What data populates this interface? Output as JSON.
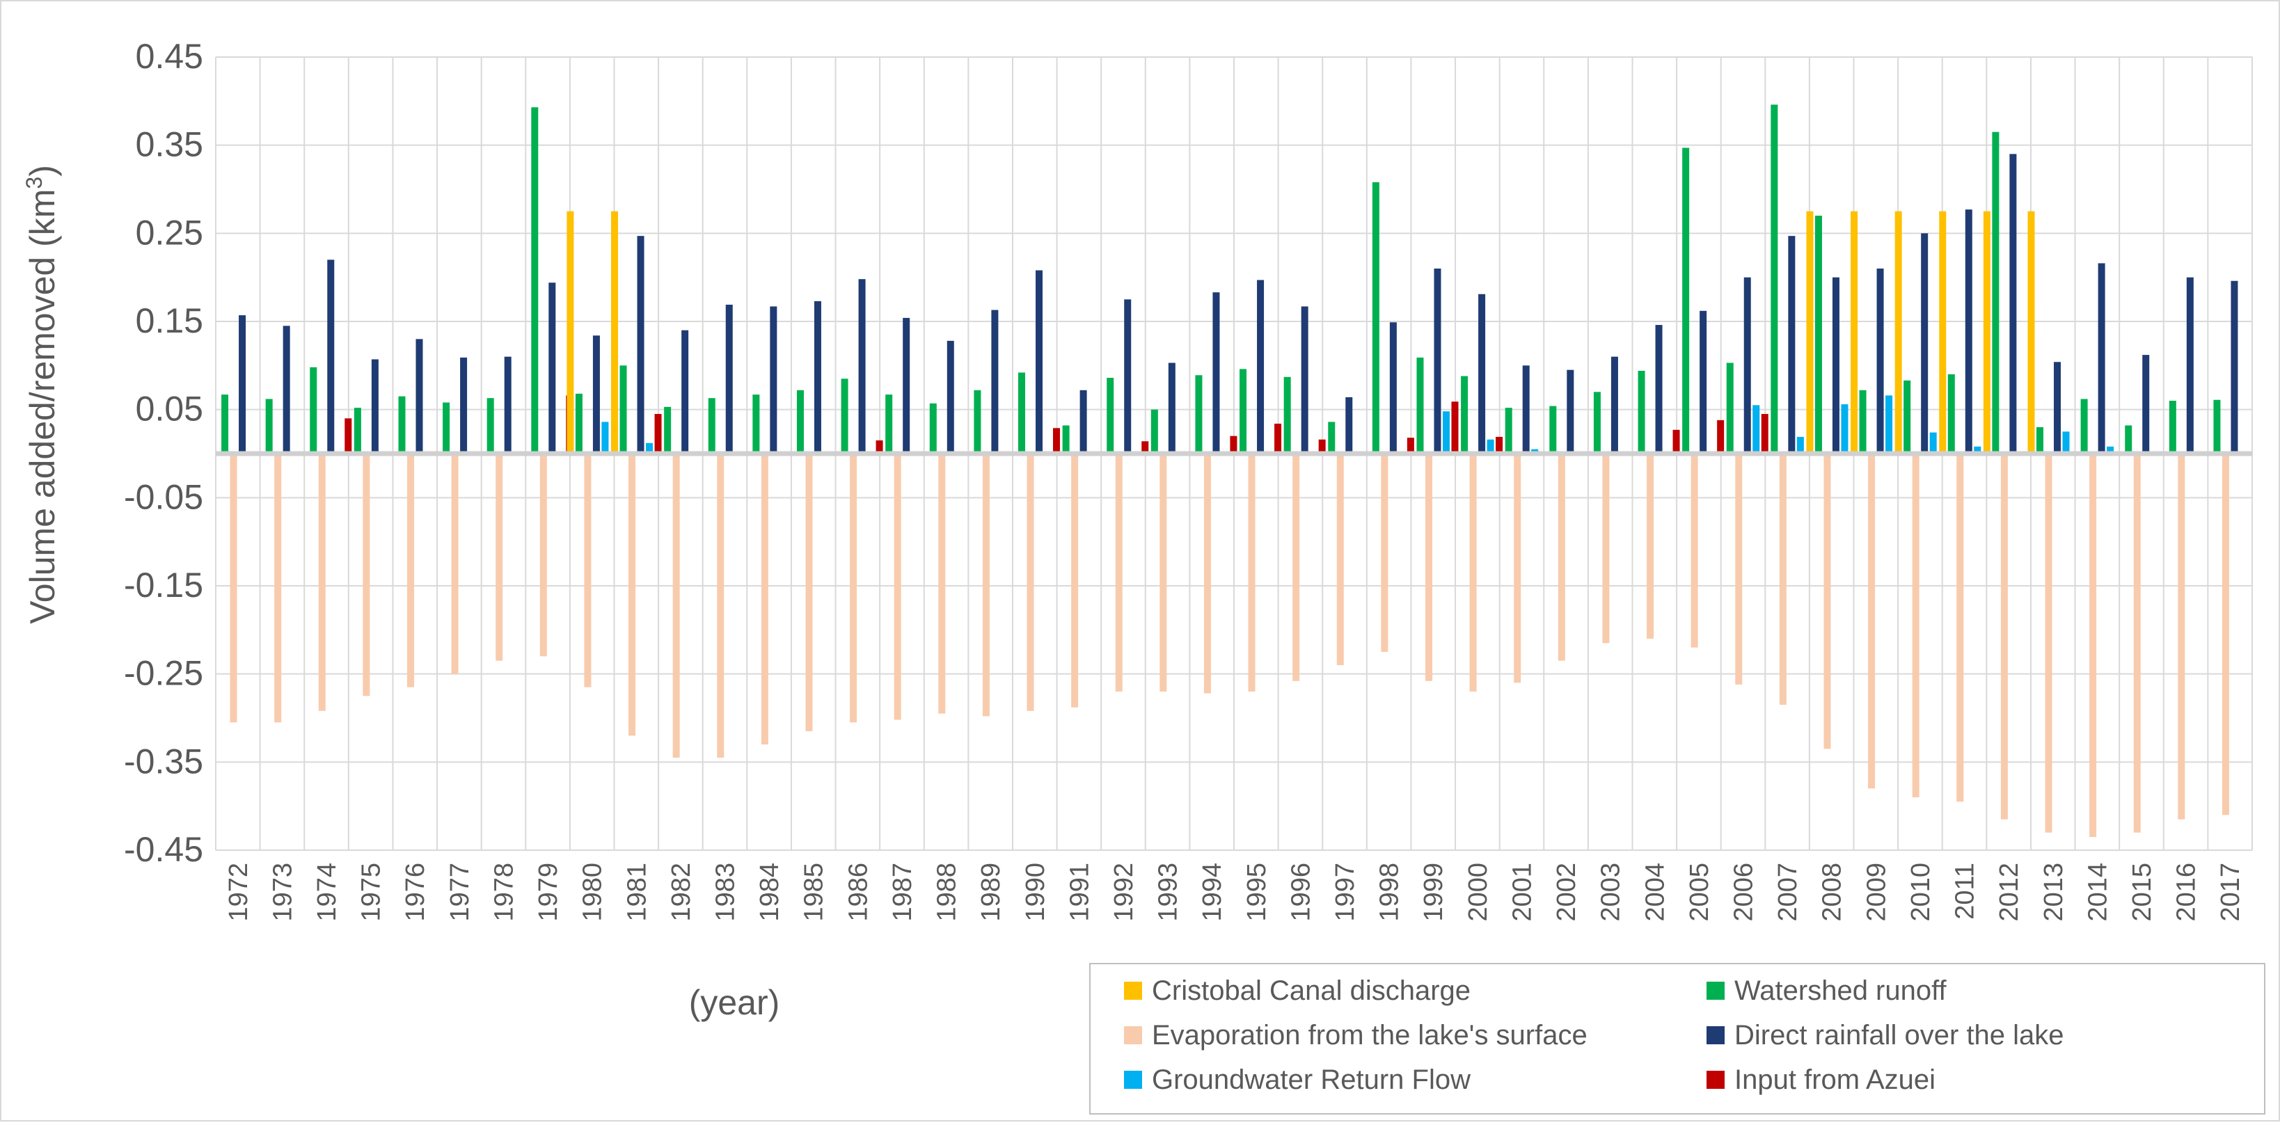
{
  "chart_data": {
    "type": "bar",
    "ylabel": "Volume added/removed (km³)",
    "xlabel": "(year)",
    "ylim": [
      -0.45,
      0.45
    ],
    "yticks": [
      "0.45",
      "0.35",
      "0.25",
      "0.15",
      "0.05",
      "-0.05",
      "-0.15",
      "-0.25",
      "-0.35",
      "-0.45"
    ],
    "grid": true,
    "legend_position": "bottom-right",
    "categories": [
      "1972",
      "1973",
      "1974",
      "1975",
      "1976",
      "1977",
      "1978",
      "1979",
      "1980",
      "1981",
      "1982",
      "1983",
      "1984",
      "1985",
      "1986",
      "1987",
      "1988",
      "1989",
      "1990",
      "1991",
      "1992",
      "1993",
      "1994",
      "1995",
      "1996",
      "1997",
      "1998",
      "1999",
      "2000",
      "2001",
      "2002",
      "2003",
      "2004",
      "2005",
      "2006",
      "2007",
      "2008",
      "2009",
      "2010",
      "2011",
      "2012",
      "2013",
      "2014",
      "2015",
      "2016",
      "2017"
    ],
    "series": [
      {
        "name": "Cristobal Canal discharge",
        "color": "#FFC000",
        "values": [
          0,
          0,
          0,
          0,
          0,
          0,
          0,
          0,
          0.275,
          0.275,
          0,
          0,
          0,
          0,
          0,
          0,
          0,
          0,
          0,
          0,
          0,
          0,
          0,
          0,
          0,
          0,
          0,
          0,
          0,
          0,
          0,
          0,
          0,
          0,
          0,
          0,
          0.275,
          0.275,
          0.275,
          0.275,
          0.275,
          0.275,
          0,
          0,
          0,
          0
        ]
      },
      {
        "name": "Watershed runoff",
        "color": "#00B050",
        "values": [
          0.067,
          0.062,
          0.098,
          0.052,
          0.065,
          0.058,
          0.063,
          0.393,
          0.068,
          0.1,
          0.053,
          0.063,
          0.067,
          0.072,
          0.085,
          0.067,
          0.057,
          0.072,
          0.092,
          0.032,
          0.086,
          0.05,
          0.089,
          0.096,
          0.087,
          0.036,
          0.308,
          0.109,
          0.088,
          0.052,
          0.054,
          0.07,
          0.094,
          0.347,
          0.103,
          0.396,
          0.27,
          0.072,
          0.083,
          0.09,
          0.365,
          0.03,
          0.062,
          0.032,
          0.06,
          0.061
        ]
      },
      {
        "name": "Evaporation from the lake's surface",
        "color": "#F8CBAD",
        "values": [
          -0.305,
          -0.305,
          -0.292,
          -0.275,
          -0.265,
          -0.25,
          -0.235,
          -0.23,
          -0.265,
          -0.32,
          -0.345,
          -0.345,
          -0.33,
          -0.315,
          -0.305,
          -0.302,
          -0.295,
          -0.298,
          -0.292,
          -0.288,
          -0.27,
          -0.27,
          -0.272,
          -0.27,
          -0.258,
          -0.24,
          -0.225,
          -0.258,
          -0.27,
          -0.26,
          -0.235,
          -0.215,
          -0.21,
          -0.22,
          -0.262,
          -0.285,
          -0.335,
          -0.38,
          -0.39,
          -0.395,
          -0.415,
          -0.43,
          -0.435,
          -0.43,
          -0.415,
          -0.41
        ]
      },
      {
        "name": "Direct rainfall over the lake",
        "color": "#1F3B73",
        "values": [
          0.157,
          0.145,
          0.22,
          0.107,
          0.13,
          0.109,
          0.11,
          0.194,
          0.134,
          0.247,
          0.14,
          0.169,
          0.167,
          0.173,
          0.198,
          0.154,
          0.128,
          0.163,
          0.208,
          0.072,
          0.175,
          0.103,
          0.183,
          0.197,
          0.167,
          0.064,
          0.149,
          0.21,
          0.181,
          0.1,
          0.095,
          0.11,
          0.146,
          0.162,
          0.2,
          0.247,
          0.2,
          0.21,
          0.25,
          0.277,
          0.34,
          0.104,
          0.216,
          0.112,
          0.2,
          0.196
        ]
      },
      {
        "name": "Groundwater Return Flow",
        "color": "#00B0F0",
        "values": [
          0,
          0,
          0,
          0,
          0,
          0,
          0,
          0,
          0.036,
          0.012,
          0,
          0,
          0,
          0,
          0,
          0,
          0,
          0,
          0,
          0,
          0,
          0,
          0,
          0,
          0,
          0,
          0,
          0.048,
          0.016,
          0.005,
          0,
          0,
          0,
          0,
          0.055,
          0.019,
          0.056,
          0.066,
          0.024,
          0.008,
          0,
          0.025,
          0.008,
          0,
          0,
          0
        ]
      },
      {
        "name": "Input from Azuei",
        "color": "#C00000",
        "values": [
          0,
          0,
          0.04,
          0,
          0,
          0,
          0,
          0.066,
          0,
          0.045,
          0,
          0,
          0,
          0,
          0.015,
          0,
          0,
          0,
          0.029,
          0,
          0.014,
          0,
          0.02,
          0.034,
          0.016,
          0,
          0.018,
          0.059,
          0.019,
          0,
          0,
          0,
          0.027,
          0.038,
          0.045,
          0,
          0,
          0,
          0,
          0,
          0,
          0,
          0,
          0,
          0,
          0
        ]
      }
    ]
  }
}
